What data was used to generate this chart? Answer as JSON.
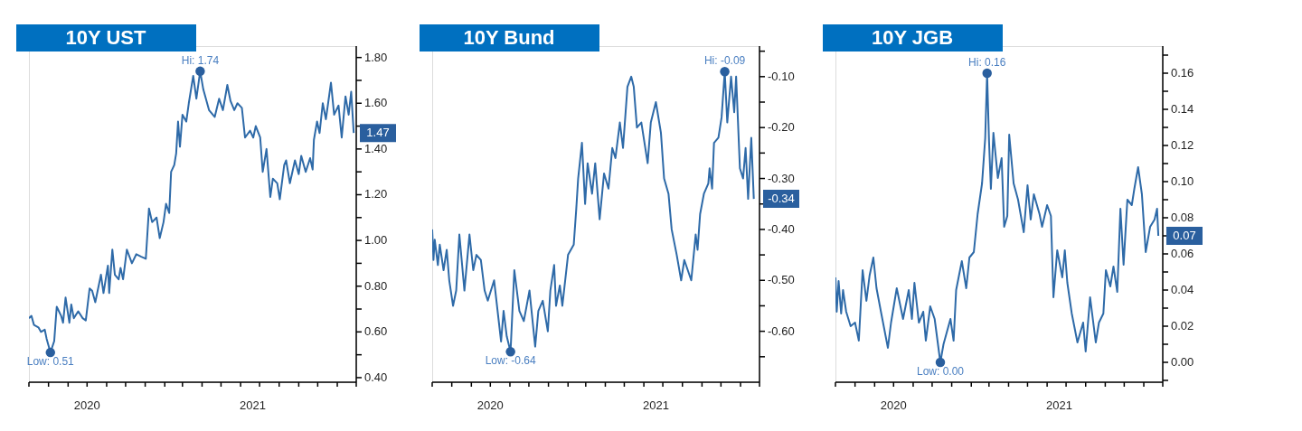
{
  "chart_data": [
    {
      "type": "line",
      "title": "10Y UST",
      "x": [
        "2020-07-01",
        "2020-07-05",
        "2020-07-09",
        "2020-07-16",
        "2020-07-20",
        "2020-07-26",
        "2020-07-29",
        "2020-08-04",
        "2020-08-10",
        "2020-08-14",
        "2020-08-21",
        "2020-08-24",
        "2020-08-28",
        "2020-09-03",
        "2020-09-06",
        "2020-09-10",
        "2020-09-17",
        "2020-09-24",
        "2020-09-29",
        "2020-10-05",
        "2020-10-09",
        "2020-10-14",
        "2020-10-23",
        "2020-10-27",
        "2020-11-03",
        "2020-11-05",
        "2020-11-10",
        "2020-11-14",
        "2020-11-20",
        "2020-11-23",
        "2020-11-27",
        "2020-12-03",
        "2020-12-11",
        "2020-12-18",
        "2020-12-25",
        "2021-01-02",
        "2021-01-07",
        "2021-01-12",
        "2021-01-19",
        "2021-01-24",
        "2021-01-30",
        "2021-02-03",
        "2021-02-08",
        "2021-02-11",
        "2021-02-16",
        "2021-02-19",
        "2021-02-22",
        "2021-02-25",
        "2021-03-01",
        "2021-03-07",
        "2021-03-11",
        "2021-03-18",
        "2021-03-23",
        "2021-03-29",
        "2021-04-03",
        "2021-04-12",
        "2021-04-21",
        "2021-04-28",
        "2021-05-04",
        "2021-05-11",
        "2021-05-16",
        "2021-05-22",
        "2021-05-27",
        "2021-06-03",
        "2021-06-08",
        "2021-06-16",
        "2021-06-21",
        "2021-06-25",
        "2021-07-02",
        "2021-07-06",
        "2021-07-12",
        "2021-07-18",
        "2021-07-22",
        "2021-07-29",
        "2021-08-02",
        "2021-08-09",
        "2021-08-12",
        "2021-08-18",
        "2021-08-26",
        "2021-09-01",
        "2021-09-05",
        "2021-09-12",
        "2021-09-19",
        "2021-09-23",
        "2021-09-25",
        "2021-09-30",
        "2021-10-04",
        "2021-10-09",
        "2021-10-14",
        "2021-10-22",
        "2021-10-27",
        "2021-11-03",
        "2021-11-08",
        "2021-11-14",
        "2021-11-19",
        "2021-11-23",
        "2021-11-27"
      ],
      "series": [
        {
          "color": "#2e6aa8",
          "values": [
            0.66,
            0.67,
            0.63,
            0.62,
            0.6,
            0.61,
            0.57,
            0.51,
            0.56,
            0.71,
            0.67,
            0.64,
            0.75,
            0.64,
            0.72,
            0.66,
            0.69,
            0.66,
            0.65,
            0.79,
            0.78,
            0.73,
            0.85,
            0.77,
            0.89,
            0.77,
            0.96,
            0.85,
            0.83,
            0.88,
            0.83,
            0.96,
            0.9,
            0.94,
            0.93,
            0.92,
            1.14,
            1.08,
            1.1,
            1.01,
            1.08,
            1.16,
            1.12,
            1.3,
            1.33,
            1.38,
            1.52,
            1.41,
            1.55,
            1.52,
            1.6,
            1.72,
            1.62,
            1.74,
            1.66,
            1.57,
            1.54,
            1.62,
            1.57,
            1.68,
            1.61,
            1.57,
            1.6,
            1.58,
            1.45,
            1.48,
            1.45,
            1.5,
            1.45,
            1.3,
            1.4,
            1.19,
            1.27,
            1.25,
            1.18,
            1.33,
            1.35,
            1.25,
            1.35,
            1.29,
            1.37,
            1.3,
            1.36,
            1.31,
            1.44,
            1.52,
            1.47,
            1.6,
            1.53,
            1.69,
            1.55,
            1.59,
            1.45,
            1.63,
            1.55,
            1.65,
            1.47
          ]
        }
      ],
      "xlim": [
        "2020-07-01",
        "2021-12-01"
      ],
      "xticks": [
        {
          "value": "2020-07-01",
          "label": null
        },
        {
          "value": "2020-08-01",
          "label": null
        },
        {
          "value": "2020-09-01",
          "label": null
        },
        {
          "value": "2020-10-01",
          "label": null
        },
        {
          "value": "2020-11-01",
          "label": null
        },
        {
          "value": "2020-12-01",
          "label": null
        },
        {
          "value": "2021-01-01",
          "label": null
        },
        {
          "value": "2021-02-01",
          "label": null
        },
        {
          "value": "2021-03-01",
          "label": null
        },
        {
          "value": "2021-04-01",
          "label": null
        },
        {
          "value": "2021-05-01",
          "label": null
        },
        {
          "value": "2021-06-01",
          "label": null
        },
        {
          "value": "2021-07-01",
          "label": null
        },
        {
          "value": "2021-08-01",
          "label": null
        },
        {
          "value": "2021-09-01",
          "label": null
        },
        {
          "value": "2021-10-01",
          "label": null
        },
        {
          "value": "2021-11-01",
          "label": null
        },
        {
          "value": "2021-12-01",
          "label": null
        },
        {
          "value": "2020-10-01",
          "label": "2020"
        },
        {
          "value": "2021-06-20",
          "label": "2021"
        }
      ],
      "ylim": [
        0.38,
        1.85
      ],
      "yticks": [
        {
          "value": 0.4,
          "label": "0.40"
        },
        {
          "value": 0.5,
          "label": null
        },
        {
          "value": 0.6,
          "label": "0.60"
        },
        {
          "value": 0.7,
          "label": null
        },
        {
          "value": 0.8,
          "label": "0.80"
        },
        {
          "value": 0.9,
          "label": null
        },
        {
          "value": 1.0,
          "label": "1.00"
        },
        {
          "value": 1.1,
          "label": null
        },
        {
          "value": 1.2,
          "label": "1.20"
        },
        {
          "value": 1.3,
          "label": null
        },
        {
          "value": 1.4,
          "label": "1.40"
        },
        {
          "value": 1.5,
          "label": null
        },
        {
          "value": 1.6,
          "label": "1.60"
        },
        {
          "value": 1.7,
          "label": null
        },
        {
          "value": 1.8,
          "label": "1.80"
        }
      ],
      "annotations": [
        {
          "text": "Hi: 1.74",
          "x": "2021-03-29",
          "y": 1.74
        },
        {
          "text": "Low: 0.51",
          "x": "2020-08-04",
          "y": 0.51
        },
        {
          "text": "1.47",
          "x": "2021-11-27",
          "y": 1.47
        }
      ]
    },
    {
      "type": "line",
      "title": "10Y Bund",
      "x": [
        "2020-07-01",
        "2020-07-03",
        "2020-07-05",
        "2020-07-10",
        "2020-07-13",
        "2020-07-19",
        "2020-07-24",
        "2020-07-28",
        "2020-08-03",
        "2020-08-08",
        "2020-08-13",
        "2020-08-21",
        "2020-08-29",
        "2020-09-04",
        "2020-09-09",
        "2020-09-16",
        "2020-09-22",
        "2020-09-27",
        "2020-10-07",
        "2020-10-18",
        "2020-10-22",
        "2020-10-27",
        "2020-11-02",
        "2020-11-08",
        "2020-11-16",
        "2020-11-23",
        "2020-12-02",
        "2020-12-11",
        "2020-12-16",
        "2020-12-23",
        "2020-12-31",
        "2021-01-04",
        "2021-01-10",
        "2021-01-13",
        "2021-01-19",
        "2021-01-23",
        "2021-02-01",
        "2021-02-10",
        "2021-02-14",
        "2021-02-17",
        "2021-02-23",
        "2021-02-28",
        "2021-03-04",
        "2021-03-11",
        "2021-03-16",
        "2021-03-23",
        "2021-03-30",
        "2021-04-06",
        "2021-04-12",
        "2021-04-17",
        "2021-04-24",
        "2021-04-29",
        "2021-05-06",
        "2021-05-12",
        "2021-05-16",
        "2021-05-21",
        "2021-05-28",
        "2021-06-07",
        "2021-06-12",
        "2021-06-20",
        "2021-06-28",
        "2021-07-03",
        "2021-07-10",
        "2021-07-15",
        "2021-07-23",
        "2021-07-30",
        "2021-08-04",
        "2021-08-15",
        "2021-08-22",
        "2021-08-25",
        "2021-08-29",
        "2021-09-04",
        "2021-09-11",
        "2021-09-13",
        "2021-09-17",
        "2021-09-20",
        "2021-09-27",
        "2021-10-02",
        "2021-10-07",
        "2021-10-11",
        "2021-10-17",
        "2021-10-22",
        "2021-10-25",
        "2021-10-31",
        "2021-11-05",
        "2021-11-09",
        "2021-11-13",
        "2021-11-18",
        "2021-11-22"
      ],
      "series": [
        {
          "color": "#2e6aa8",
          "values": [
            -0.4,
            -0.46,
            -0.42,
            -0.47,
            -0.43,
            -0.48,
            -0.44,
            -0.5,
            -0.55,
            -0.52,
            -0.41,
            -0.52,
            -0.41,
            -0.48,
            -0.45,
            -0.46,
            -0.52,
            -0.54,
            -0.5,
            -0.62,
            -0.56,
            -0.61,
            -0.64,
            -0.48,
            -0.56,
            -0.58,
            -0.52,
            -0.63,
            -0.56,
            -0.54,
            -0.6,
            -0.52,
            -0.47,
            -0.55,
            -0.51,
            -0.55,
            -0.45,
            -0.43,
            -0.36,
            -0.3,
            -0.23,
            -0.35,
            -0.27,
            -0.33,
            -0.27,
            -0.38,
            -0.29,
            -0.32,
            -0.24,
            -0.26,
            -0.19,
            -0.24,
            -0.12,
            -0.1,
            -0.12,
            -0.2,
            -0.19,
            -0.27,
            -0.19,
            -0.15,
            -0.21,
            -0.3,
            -0.33,
            -0.4,
            -0.45,
            -0.5,
            -0.46,
            -0.5,
            -0.41,
            -0.44,
            -0.37,
            -0.33,
            -0.31,
            -0.28,
            -0.32,
            -0.23,
            -0.22,
            -0.18,
            -0.09,
            -0.19,
            -0.1,
            -0.17,
            -0.1,
            -0.28,
            -0.3,
            -0.24,
            -0.34,
            -0.22,
            -0.34
          ]
        }
      ],
      "xlim": [
        "2020-07-01",
        "2021-12-01"
      ],
      "xticks": [
        {
          "value": "2020-07-01",
          "label": null
        },
        {
          "value": "2020-08-01",
          "label": null
        },
        {
          "value": "2020-09-01",
          "label": null
        },
        {
          "value": "2020-10-01",
          "label": null
        },
        {
          "value": "2020-11-01",
          "label": null
        },
        {
          "value": "2020-12-01",
          "label": null
        },
        {
          "value": "2021-01-01",
          "label": null
        },
        {
          "value": "2021-02-01",
          "label": null
        },
        {
          "value": "2021-03-01",
          "label": null
        },
        {
          "value": "2021-04-01",
          "label": null
        },
        {
          "value": "2021-05-01",
          "label": null
        },
        {
          "value": "2021-06-01",
          "label": null
        },
        {
          "value": "2021-07-01",
          "label": null
        },
        {
          "value": "2021-08-01",
          "label": null
        },
        {
          "value": "2021-09-01",
          "label": null
        },
        {
          "value": "2021-10-01",
          "label": null
        },
        {
          "value": "2021-11-01",
          "label": null
        },
        {
          "value": "2021-12-01",
          "label": null
        },
        {
          "value": "2020-10-01",
          "label": "2020"
        },
        {
          "value": "2021-06-20",
          "label": "2021"
        }
      ],
      "ylim": [
        -0.7,
        -0.04
      ],
      "yticks": [
        {
          "value": -0.65,
          "label": null
        },
        {
          "value": -0.6,
          "label": "-0.60"
        },
        {
          "value": -0.55,
          "label": null
        },
        {
          "value": -0.5,
          "label": "-0.50"
        },
        {
          "value": -0.45,
          "label": null
        },
        {
          "value": -0.4,
          "label": "-0.40"
        },
        {
          "value": -0.35,
          "label": null
        },
        {
          "value": -0.3,
          "label": "-0.30"
        },
        {
          "value": -0.25,
          "label": null
        },
        {
          "value": -0.2,
          "label": "-0.20"
        },
        {
          "value": -0.15,
          "label": null
        },
        {
          "value": -0.1,
          "label": "-0.10"
        },
        {
          "value": -0.05,
          "label": null
        }
      ],
      "annotations": [
        {
          "text": "Hi: -0.09",
          "x": "2021-10-07",
          "y": -0.09
        },
        {
          "text": "Low: -0.64",
          "x": "2020-11-02",
          "y": -0.64
        },
        {
          "text": "-0.34",
          "x": "2021-11-22",
          "y": -0.34
        }
      ]
    },
    {
      "type": "line",
      "title": "10Y JGB",
      "x": [
        "2020-07-01",
        "2020-07-03",
        "2020-07-06",
        "2020-07-10",
        "2020-07-13",
        "2020-07-18",
        "2020-07-25",
        "2020-08-01",
        "2020-08-07",
        "2020-08-13",
        "2020-08-19",
        "2020-08-24",
        "2020-08-30",
        "2020-09-04",
        "2020-09-11",
        "2020-09-22",
        "2020-09-27",
        "2020-10-06",
        "2020-10-16",
        "2020-10-25",
        "2020-10-30",
        "2020-11-03",
        "2020-11-10",
        "2020-11-17",
        "2020-11-21",
        "2020-11-28",
        "2020-12-05",
        "2020-12-14",
        "2020-12-19",
        "2020-12-30",
        "2021-01-04",
        "2021-01-08",
        "2021-01-17",
        "2021-01-24",
        "2021-01-29",
        "2021-02-05",
        "2021-02-11",
        "2021-02-18",
        "2021-02-23",
        "2021-02-26",
        "2021-03-01",
        "2021-03-04",
        "2021-03-08",
        "2021-03-15",
        "2021-03-21",
        "2021-03-25",
        "2021-03-30",
        "2021-04-02",
        "2021-04-09",
        "2021-04-16",
        "2021-04-25",
        "2021-05-01",
        "2021-05-06",
        "2021-05-11",
        "2021-05-20",
        "2021-05-24",
        "2021-06-01",
        "2021-06-07",
        "2021-06-11",
        "2021-06-17",
        "2021-06-25",
        "2021-06-29",
        "2021-07-03",
        "2021-07-10",
        "2021-07-19",
        "2021-07-28",
        "2021-08-01",
        "2021-08-08",
        "2021-08-17",
        "2021-08-22",
        "2021-08-29",
        "2021-09-02",
        "2021-09-09",
        "2021-09-14",
        "2021-09-20",
        "2021-09-25",
        "2021-09-30",
        "2021-10-06",
        "2021-10-13",
        "2021-10-17",
        "2021-10-23",
        "2021-10-29",
        "2021-11-04",
        "2021-11-11",
        "2021-11-18",
        "2021-11-22",
        "2021-11-24"
      ],
      "series": [
        {
          "color": "#2e6aa8",
          "values": [
            0.047,
            0.028,
            0.045,
            0.027,
            0.04,
            0.028,
            0.02,
            0.022,
            0.012,
            0.051,
            0.034,
            0.048,
            0.058,
            0.041,
            0.028,
            0.008,
            0.022,
            0.041,
            0.024,
            0.04,
            0.024,
            0.044,
            0.022,
            0.028,
            0.012,
            0.031,
            0.024,
            0.0,
            0.01,
            0.024,
            0.012,
            0.04,
            0.056,
            0.041,
            0.058,
            0.061,
            0.082,
            0.099,
            0.124,
            0.16,
            0.123,
            0.096,
            0.127,
            0.102,
            0.113,
            0.075,
            0.081,
            0.126,
            0.099,
            0.09,
            0.072,
            0.098,
            0.079,
            0.093,
            0.082,
            0.075,
            0.087,
            0.081,
            0.036,
            0.062,
            0.047,
            0.062,
            0.044,
            0.027,
            0.011,
            0.022,
            0.006,
            0.036,
            0.011,
            0.022,
            0.027,
            0.051,
            0.042,
            0.053,
            0.039,
            0.085,
            0.054,
            0.09,
            0.087,
            0.096,
            0.108,
            0.093,
            0.061,
            0.075,
            0.079,
            0.085,
            0.07
          ]
        }
      ],
      "xlim": [
        "2020-07-01",
        "2021-12-01"
      ],
      "xticks": [
        {
          "value": "2020-07-01",
          "label": null
        },
        {
          "value": "2020-08-01",
          "label": null
        },
        {
          "value": "2020-09-01",
          "label": null
        },
        {
          "value": "2020-10-01",
          "label": null
        },
        {
          "value": "2020-11-01",
          "label": null
        },
        {
          "value": "2020-12-01",
          "label": null
        },
        {
          "value": "2021-01-01",
          "label": null
        },
        {
          "value": "2021-02-01",
          "label": null
        },
        {
          "value": "2021-03-01",
          "label": null
        },
        {
          "value": "2021-04-01",
          "label": null
        },
        {
          "value": "2021-05-01",
          "label": null
        },
        {
          "value": "2021-06-01",
          "label": null
        },
        {
          "value": "2021-07-01",
          "label": null
        },
        {
          "value": "2021-08-01",
          "label": null
        },
        {
          "value": "2021-09-01",
          "label": null
        },
        {
          "value": "2021-10-01",
          "label": null
        },
        {
          "value": "2021-11-01",
          "label": null
        },
        {
          "value": "2021-12-01",
          "label": null
        },
        {
          "value": "2020-10-01",
          "label": "2020"
        },
        {
          "value": "2021-06-20",
          "label": "2021"
        }
      ],
      "ylim": [
        -0.011,
        0.175
      ],
      "yticks": [
        {
          "value": -0.01,
          "label": null
        },
        {
          "value": 0,
          "label": "0.00"
        },
        {
          "value": 0.01,
          "label": null
        },
        {
          "value": 0.02,
          "label": "0.02"
        },
        {
          "value": 0.03,
          "label": null
        },
        {
          "value": 0.04,
          "label": "0.04"
        },
        {
          "value": 0.05,
          "label": null
        },
        {
          "value": 0.06,
          "label": "0.06"
        },
        {
          "value": 0.07,
          "label": null
        },
        {
          "value": 0.08,
          "label": "0.08"
        },
        {
          "value": 0.09,
          "label": null
        },
        {
          "value": 0.1,
          "label": "0.10"
        },
        {
          "value": 0.11,
          "label": null
        },
        {
          "value": 0.12,
          "label": "0.12"
        },
        {
          "value": 0.13,
          "label": null
        },
        {
          "value": 0.14,
          "label": "0.14"
        },
        {
          "value": 0.15,
          "label": null
        },
        {
          "value": 0.16,
          "label": "0.16"
        },
        {
          "value": 0.17,
          "label": null
        }
      ],
      "annotations": [
        {
          "text": "Hi: 0.16",
          "x": "2021-02-26",
          "y": 0.16
        },
        {
          "text": "Low: 0.00",
          "x": "2020-12-14",
          "y": 0.0
        },
        {
          "text": "0.07",
          "x": "2021-11-24",
          "y": 0.07
        }
      ]
    }
  ]
}
